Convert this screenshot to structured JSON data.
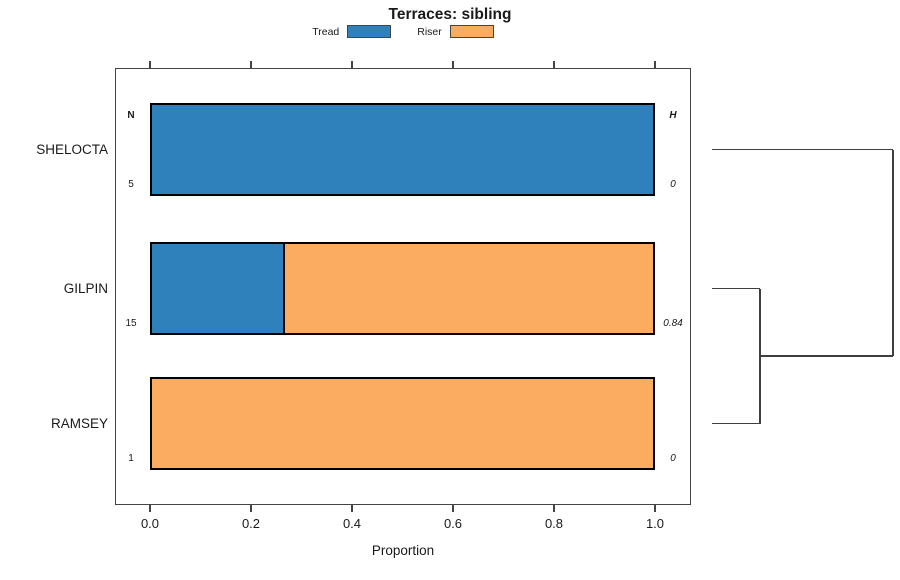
{
  "chart_data": {
    "type": "bar",
    "orientation": "horizontal-stacked-proportion",
    "title": "Terraces: sibling",
    "xlabel": "Proportion",
    "xlim": [
      0,
      1
    ],
    "x_ticks": [
      "0.0",
      "0.2",
      "0.4",
      "0.6",
      "0.8",
      "1.0"
    ],
    "x_tick_values": [
      0,
      0.2,
      0.4,
      0.6,
      0.8,
      1.0
    ],
    "grid": false,
    "legend_position": "top",
    "categories": [
      "SHELOCTA",
      "GILPIN",
      "RAMSEY"
    ],
    "series": [
      {
        "name": "Tread",
        "color": "#2E81BB",
        "values": [
          1.0,
          0.267,
          0.0
        ]
      },
      {
        "name": "Riser",
        "color": "#FCAC60",
        "values": [
          0.0,
          0.733,
          1.0
        ]
      }
    ],
    "n_header": "N",
    "n_values": [
      "5",
      "15",
      "1"
    ],
    "h_header": "H",
    "h_values": [
      "0",
      "0.84",
      "0"
    ],
    "dendrogram": {
      "leaves": [
        "SHELOCTA",
        "GILPIN",
        "RAMSEY"
      ],
      "merges": [
        {
          "children": [
            "leaf:1",
            "leaf:2"
          ],
          "distance": 0.265
        },
        {
          "children": [
            "merge:0",
            "leaf:0"
          ],
          "distance": 1.0
        }
      ]
    },
    "colors": {
      "bar_border": "#000000",
      "axis": "#444444",
      "dendrogram_line": "#3f3f3f",
      "background": "#ffffff"
    }
  }
}
